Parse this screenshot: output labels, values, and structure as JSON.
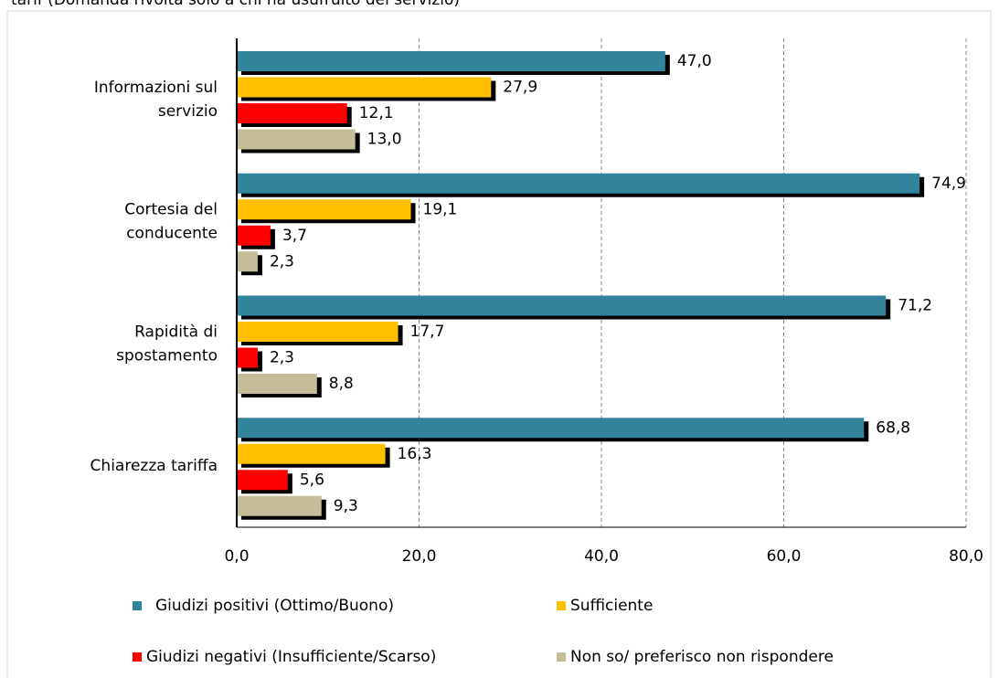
{
  "chart_data": {
    "type": "bar",
    "orientation": "horizontal",
    "title": "tarif (Domanda rivolta solo a chi ha usufruito del servizio)",
    "categories": [
      "Informazioni sul\nservizio",
      "Cortesia del\nconducente",
      "Rapidità di\nspostamento",
      "Chiarezza tariffa"
    ],
    "series": [
      {
        "name": "Giudizi positivi (Ottimo/Buono)",
        "color": "#31849b",
        "values": [
          47.0,
          74.9,
          71.2,
          68.8
        ],
        "value_labels": [
          "47,0",
          "74,9",
          "71,2",
          "68,8"
        ]
      },
      {
        "name": "Sufficiente",
        "color": "#ffc000",
        "values": [
          27.9,
          19.1,
          17.7,
          16.3
        ],
        "value_labels": [
          "27,9",
          "19,1",
          "17,7",
          "16,3"
        ]
      },
      {
        "name": "Giudizi negativi (Insufficiente/Scarso)",
        "color": "#ff0000",
        "values": [
          12.1,
          3.7,
          2.3,
          5.6
        ],
        "value_labels": [
          "12,1",
          "3,7",
          "2,3",
          "5,6"
        ]
      },
      {
        "name": "Non so/ preferisco non rispondere",
        "color": "#c4bd97",
        "values": [
          13.0,
          2.3,
          8.8,
          9.3
        ],
        "value_labels": [
          "13,0",
          "2,3",
          "8,8",
          "9,3"
        ]
      }
    ],
    "xlim": [
      0,
      80
    ],
    "xticks": [
      {
        "value": 0,
        "label": "0,0"
      },
      {
        "value": 20,
        "label": "20,0"
      },
      {
        "value": 40,
        "label": "40,0"
      },
      {
        "value": 60,
        "label": "60,0"
      },
      {
        "value": 80,
        "label": "80,0"
      }
    ],
    "grid": true,
    "grid_style": "dashed",
    "legend": "bottom"
  }
}
